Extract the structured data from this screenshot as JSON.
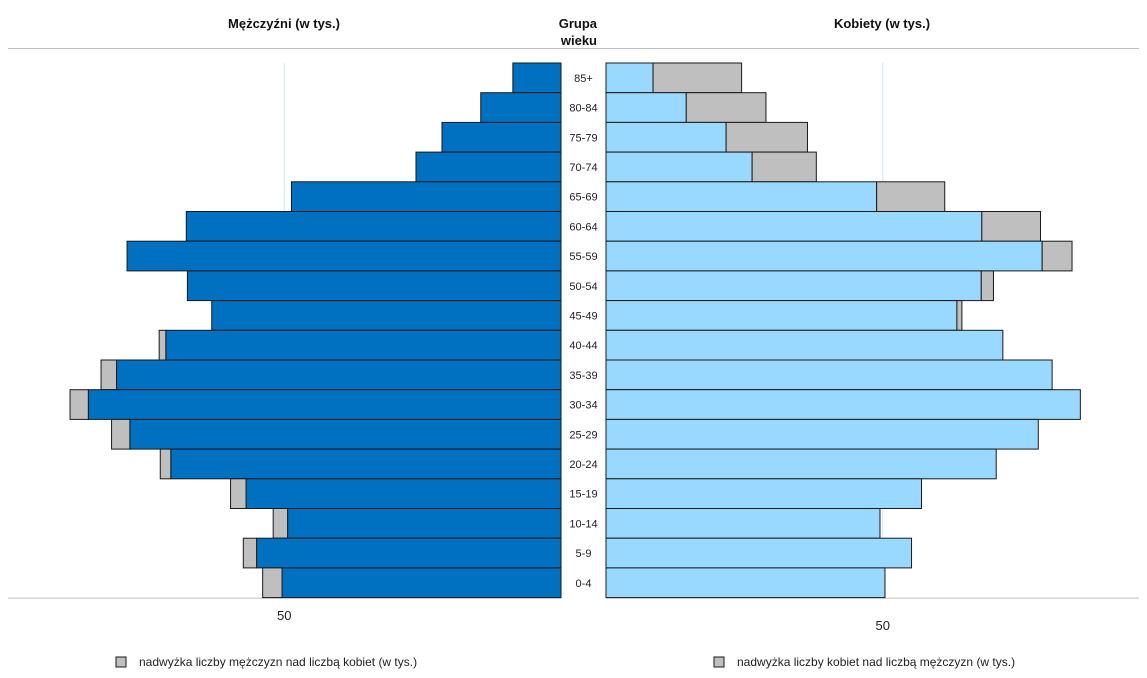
{
  "chart_data": {
    "type": "bar",
    "subtype": "population-pyramid",
    "left_title": "Mężczyźni (w tys.)",
    "center_title_line1": "Grupa",
    "center_title_line2": "wieku",
    "right_title": "Kobiety (w tys.)",
    "categories": [
      "85+",
      "80-84",
      "75-79",
      "70-74",
      "65-69",
      "60-64",
      "55-59",
      "50-54",
      "45-49",
      "40-44",
      "35-39",
      "30-34",
      "25-29",
      "20-24",
      "15-19",
      "10-14",
      "5-9",
      "0-4"
    ],
    "series": [
      {
        "name": "Mężczyźni (w tys.)",
        "values": [
          8.7,
          14.5,
          21.5,
          26.2,
          48.7,
          67.7,
          78.4,
          67.5,
          63.1,
          71.4,
          80.3,
          85.4,
          77.9,
          70.5,
          56.9,
          49.4,
          55.0,
          50.4
        ]
      },
      {
        "name": "Kobiety (w tys.)",
        "values": [
          8.5,
          14.5,
          21.7,
          26.4,
          48.9,
          67.9,
          78.8,
          67.8,
          63.4,
          71.7,
          80.6,
          85.7,
          78.1,
          70.5,
          57.0,
          49.5,
          55.2,
          50.4
        ]
      },
      {
        "name": "nadwyżka liczby mężczyzn nad liczbą kobiet (w tys.)",
        "values": [
          0,
          0,
          0,
          0,
          0,
          0,
          0,
          0,
          0,
          1.2,
          2.8,
          3.3,
          3.3,
          1.9,
          2.8,
          2.6,
          2.4,
          3.5
        ]
      },
      {
        "name": "nadwyżka liczby kobiet nad liczbą mężczyzn (w tys.)",
        "values": [
          16.0,
          14.4,
          14.7,
          11.6,
          12.3,
          10.6,
          5.4,
          2.2,
          0.9,
          0,
          0,
          0,
          0,
          0,
          0,
          0,
          0,
          0
        ]
      }
    ],
    "xlim": [
      0,
      100
    ],
    "tick_value": 50,
    "tick_label": "50",
    "legend": {
      "left_label": "nadwyżka liczby mężczyzn nad liczbą kobiet (w tys.)",
      "right_label": "nadwyżka liczby kobiet nad liczbą mężczyzn (w tys.)",
      "placement": "bottom"
    },
    "colors": {
      "male": "#0070C0",
      "female": "#99D9FF",
      "surplus": "#BFBFBF",
      "bar_stroke": "#1a1a1a",
      "grid": "#D6E6F2",
      "axis": "#BFBFBF"
    }
  }
}
